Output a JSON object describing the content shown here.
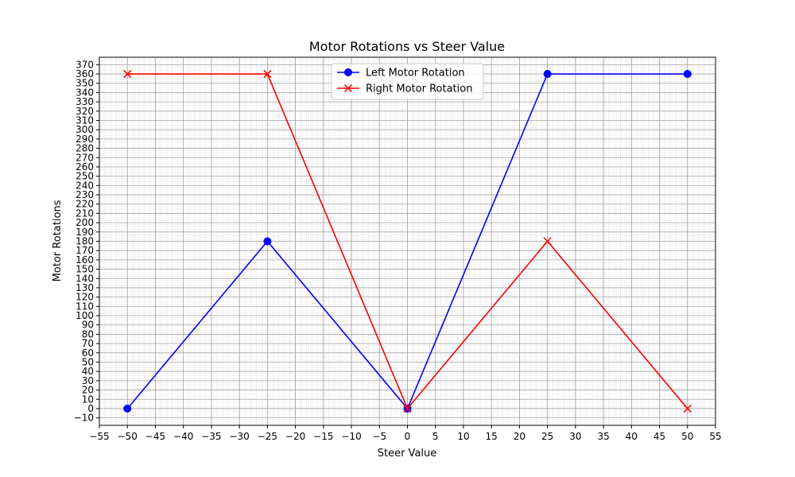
{
  "chart_data": {
    "type": "line",
    "title": "Motor Rotations vs Steer Value",
    "xlabel": "Steer Value",
    "ylabel": "Motor Rotations",
    "xlim": [
      -55,
      55
    ],
    "ylim": [
      -18,
      378
    ],
    "x_ticks": [
      -55,
      -50,
      -45,
      -40,
      -35,
      -30,
      -25,
      -20,
      -15,
      -10,
      -5,
      0,
      5,
      10,
      15,
      20,
      25,
      30,
      35,
      40,
      45,
      50,
      55
    ],
    "y_ticks": [
      -10,
      0,
      10,
      20,
      30,
      40,
      50,
      60,
      70,
      80,
      90,
      100,
      110,
      120,
      130,
      140,
      150,
      160,
      170,
      180,
      190,
      200,
      210,
      220,
      230,
      240,
      250,
      260,
      270,
      280,
      290,
      300,
      310,
      320,
      330,
      340,
      350,
      360,
      370
    ],
    "grid": true,
    "minor_grid": true,
    "legend_position": "top-center",
    "x": [
      -50,
      -25,
      0,
      25,
      50
    ],
    "series": [
      {
        "name": "Left Motor Rotation",
        "values": [
          0,
          180,
          0,
          360,
          360
        ],
        "color": "#0000ff",
        "marker": "circle"
      },
      {
        "name": "Right Motor Rotation",
        "values": [
          360,
          360,
          0,
          180,
          0
        ],
        "color": "#ff0000",
        "marker": "x"
      }
    ]
  }
}
